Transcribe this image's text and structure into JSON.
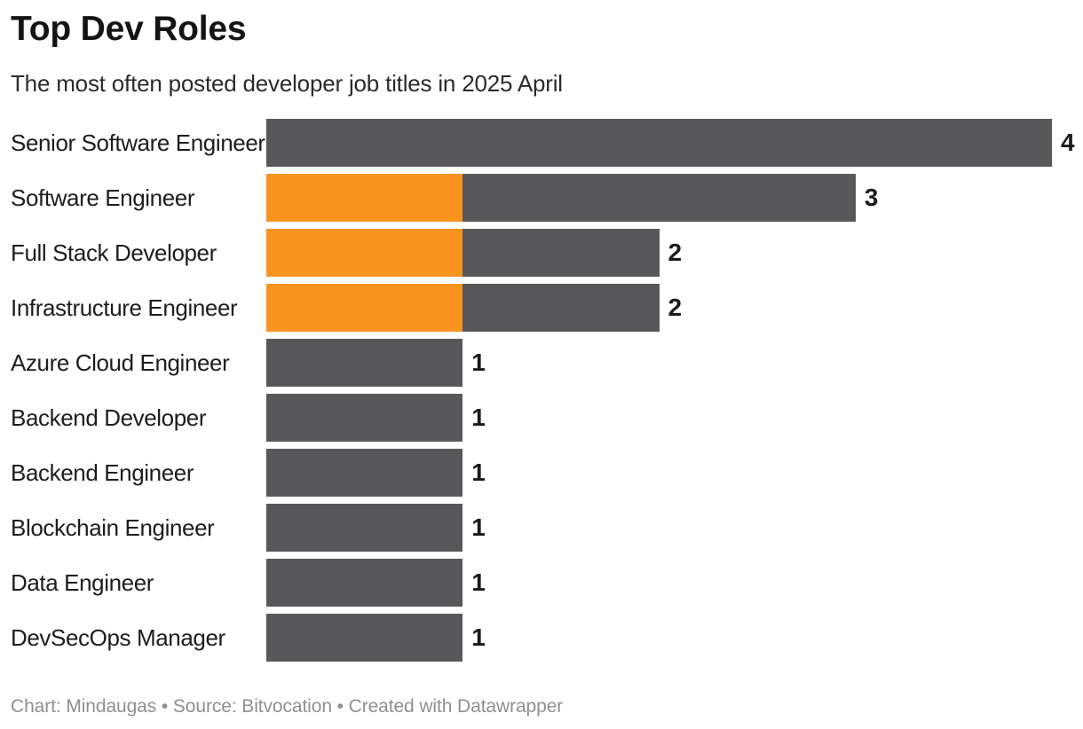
{
  "header": {
    "title": "Top Dev Roles",
    "subtitle": "The most often posted developer job titles in 2025 April"
  },
  "footer": {
    "text": "Chart: Mindaugas • Source: Bitvocation • Created with Datawrapper"
  },
  "colors": {
    "background": "#FFFFFF",
    "bar": "#58585A",
    "highlight": "#F7941E",
    "title": "#141414",
    "subtitle": "#2B2B2D",
    "category_label": "#1D1D1F",
    "value_label": "#1A1A1A",
    "footer": "#8D8F92"
  },
  "chart_data": {
    "type": "bar",
    "orientation": "horizontal",
    "title": "Top Dev Roles",
    "subtitle": "The most often posted developer job titles in 2025 April",
    "xlim": [
      0,
      4
    ],
    "grid": false,
    "legend": "none",
    "value_labels_shown": true,
    "categories": [
      "Senior Software Engineer",
      "Software Engineer",
      "Full Stack Developer",
      "Infrastructure Engineer",
      "Azure Cloud Engineer",
      "Backend Developer",
      "Backend Engineer",
      "Blockchain Engineer",
      "Data Engineer",
      "DevSecOps Manager"
    ],
    "values": [
      4,
      3,
      2,
      2,
      1,
      1,
      1,
      1,
      1,
      1
    ],
    "bars": [
      {
        "label": "Senior Software Engineer",
        "value": 4,
        "segments": [
          {
            "color": "bar",
            "value": 4
          }
        ]
      },
      {
        "label": "Software Engineer",
        "value": 3,
        "segments": [
          {
            "color": "highlight",
            "value": 1
          },
          {
            "color": "bar",
            "value": 2
          }
        ]
      },
      {
        "label": "Full Stack Developer",
        "value": 2,
        "segments": [
          {
            "color": "highlight",
            "value": 1
          },
          {
            "color": "bar",
            "value": 1
          }
        ]
      },
      {
        "label": "Infrastructure Engineer",
        "value": 2,
        "segments": [
          {
            "color": "highlight",
            "value": 1
          },
          {
            "color": "bar",
            "value": 1
          }
        ]
      },
      {
        "label": "Azure Cloud Engineer",
        "value": 1,
        "segments": [
          {
            "color": "bar",
            "value": 1
          }
        ]
      },
      {
        "label": "Backend Developer",
        "value": 1,
        "segments": [
          {
            "color": "bar",
            "value": 1
          }
        ]
      },
      {
        "label": "Backend Engineer",
        "value": 1,
        "segments": [
          {
            "color": "bar",
            "value": 1
          }
        ]
      },
      {
        "label": "Blockchain Engineer",
        "value": 1,
        "segments": [
          {
            "color": "bar",
            "value": 1
          }
        ]
      },
      {
        "label": "Data Engineer",
        "value": 1,
        "segments": [
          {
            "color": "bar",
            "value": 1
          }
        ]
      },
      {
        "label": "DevSecOps Manager",
        "value": 1,
        "segments": [
          {
            "color": "bar",
            "value": 1
          }
        ]
      }
    ]
  }
}
